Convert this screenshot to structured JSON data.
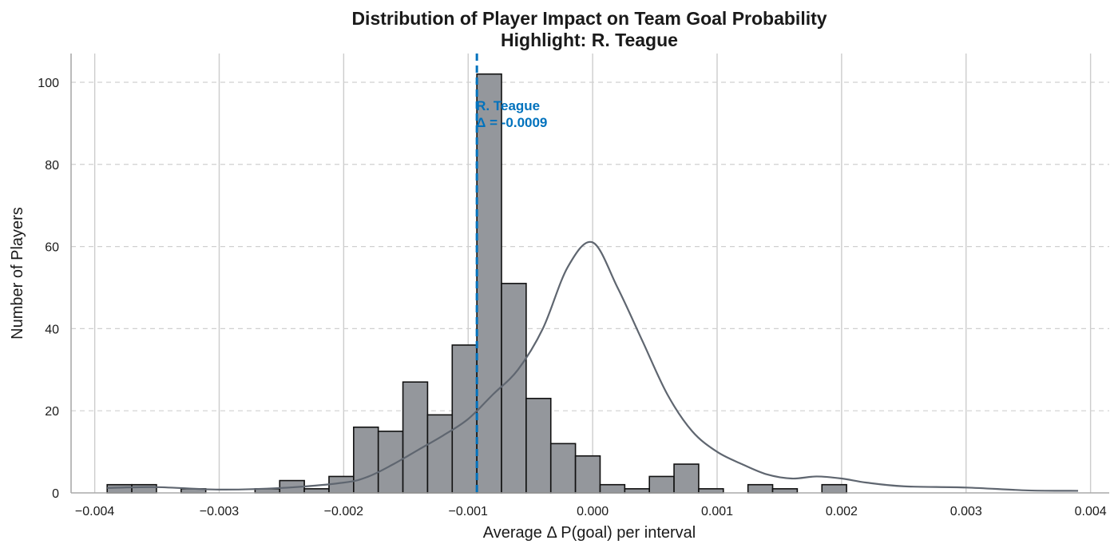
{
  "chart_data": {
    "type": "bar",
    "subtype": "histogram",
    "title": "Distribution of Player Impact on Team Goal Probability",
    "subtitle": "Highlight: R. Teague",
    "xlabel": "Average Δ P(goal) per interval",
    "ylabel": "Number of Players",
    "xlim": [
      -0.00419,
      0.00415
    ],
    "ylim": [
      0,
      107
    ],
    "x_ticks": [
      -0.004,
      -0.003,
      -0.002,
      -0.001,
      0.0,
      0.001,
      0.002,
      0.003,
      0.004
    ],
    "x_tick_labels": [
      "−0.004",
      "−0.003",
      "−0.002",
      "−0.001",
      "0.000",
      "0.001",
      "0.002",
      "0.003",
      "0.004"
    ],
    "y_ticks": [
      0,
      20,
      40,
      60,
      80,
      100
    ],
    "y_tick_labels": [
      "0",
      "20",
      "40",
      "60",
      "80",
      "100"
    ],
    "grid": true,
    "bin_start": -0.0039,
    "bin_width": 0.000198,
    "counts": [
      2,
      2,
      0,
      1,
      0,
      0,
      1,
      3,
      1,
      4,
      16,
      15,
      27,
      19,
      36,
      102,
      51,
      23,
      12,
      9,
      2,
      1,
      4,
      7,
      1,
      0,
      2,
      1,
      0,
      2
    ],
    "kde": {
      "x": [
        -0.0039,
        -0.0035,
        -0.003,
        -0.0025,
        -0.002,
        -0.0018,
        -0.0016,
        -0.0014,
        -0.0012,
        -0.001,
        -0.0008,
        -0.0006,
        -0.0004,
        -0.0002,
        0.0,
        0.0002,
        0.0004,
        0.0006,
        0.0008,
        0.001,
        0.0012,
        0.0014,
        0.0016,
        0.0018,
        0.002,
        0.0022,
        0.0025,
        0.003,
        0.0035,
        0.0039
      ],
      "y": [
        1.2,
        1.4,
        0.8,
        1.2,
        2.5,
        4,
        7,
        10.5,
        14,
        18,
        24,
        30,
        40,
        55,
        61,
        50,
        37,
        24,
        15,
        10,
        7,
        4.5,
        3.5,
        4,
        3.5,
        2.5,
        1.6,
        1.3,
        0.6,
        0.5
      ]
    },
    "highlight": {
      "x": -0.00093,
      "label_line1": "R. Teague",
      "label_line2": "Δ = -0.0009",
      "color": "#0072bd"
    },
    "bar_color": "#94979c",
    "kde_color": "#5f6670"
  }
}
